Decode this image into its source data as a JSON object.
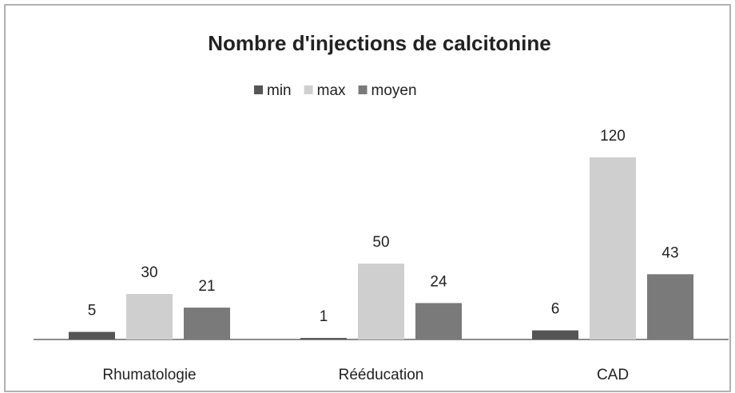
{
  "chart_data": {
    "type": "bar",
    "title": "Nombre d'injections de calcitonine",
    "categories": [
      "Rhumatologie",
      "Rééducation",
      "CAD"
    ],
    "series": [
      {
        "name": "min",
        "color": "#555555",
        "values": [
          5,
          1,
          6
        ]
      },
      {
        "name": "max",
        "color": "#cfcfcf",
        "values": [
          30,
          50,
          120
        ]
      },
      {
        "name": "moyen",
        "color": "#7a7a7a",
        "values": [
          21,
          24,
          43
        ]
      }
    ],
    "legend": "top"
  }
}
